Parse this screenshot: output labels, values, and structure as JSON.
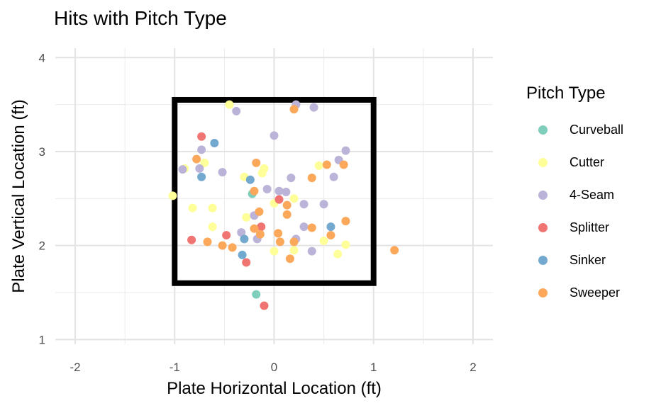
{
  "chart_data": {
    "type": "scatter",
    "title": "Hits with Pitch Type",
    "xlabel": "Plate Horizontal Location (ft)",
    "ylabel": "Plate Vertical Location (ft)",
    "xlim": [
      -2.2,
      2.2
    ],
    "ylim": [
      0.95,
      4.1
    ],
    "xticks": [
      -2,
      -1,
      0,
      1,
      2
    ],
    "yticks": [
      1,
      2,
      3,
      4
    ],
    "xtick_labels": [
      "-2",
      "-1",
      "0",
      "1",
      "2"
    ],
    "ytick_labels": [
      "1",
      "2",
      "3",
      "4"
    ],
    "grid": true,
    "strike_zone": {
      "x": [
        -1,
        1
      ],
      "y": [
        1.6,
        3.55
      ]
    },
    "legend_title": "Pitch Type",
    "legend_position": "right",
    "series": [
      {
        "name": "Curveball",
        "color": "#7fcdbb",
        "points": [
          [
            -0.22,
            2.55
          ],
          [
            -0.18,
            1.48
          ]
        ]
      },
      {
        "name": "Cutter",
        "color": "#ffff99",
        "points": [
          [
            -0.45,
            3.5
          ],
          [
            -0.9,
            2.82
          ],
          [
            -0.7,
            2.88
          ],
          [
            -1.02,
            2.53
          ],
          [
            -0.82,
            2.4
          ],
          [
            -0.62,
            2.4
          ],
          [
            -0.3,
            2.73
          ],
          [
            -0.28,
            2.3
          ],
          [
            -0.12,
            2.77
          ],
          [
            -0.1,
            2.82
          ],
          [
            0.2,
            2.5
          ],
          [
            0.45,
            2.85
          ],
          [
            -0.62,
            2.2
          ],
          [
            -0.3,
            2.07
          ],
          [
            0.0,
            1.94
          ],
          [
            0.2,
            1.95
          ],
          [
            0.5,
            2.05
          ],
          [
            0.64,
            1.91
          ],
          [
            0.72,
            2.01
          ],
          [
            0.0,
            2.45
          ]
        ]
      },
      {
        "name": "4-Seam",
        "color": "#bcb3d8",
        "points": [
          [
            -0.38,
            3.43
          ],
          [
            0.22,
            3.5
          ],
          [
            0.4,
            3.47
          ],
          [
            0.0,
            3.17
          ],
          [
            -0.73,
            3.02
          ],
          [
            -0.92,
            2.81
          ],
          [
            -0.75,
            2.82
          ],
          [
            -0.52,
            2.78
          ],
          [
            0.72,
            3.01
          ],
          [
            0.65,
            2.91
          ],
          [
            0.17,
            2.72
          ],
          [
            0.6,
            2.73
          ],
          [
            -0.07,
            2.6
          ],
          [
            0.05,
            2.58
          ],
          [
            0.12,
            2.57
          ],
          [
            0.3,
            2.44
          ],
          [
            0.5,
            2.44
          ],
          [
            -0.2,
            2.32
          ],
          [
            -0.33,
            2.14
          ],
          [
            -0.17,
            2.07
          ],
          [
            0.22,
            2.07
          ],
          [
            0.3,
            2.2
          ],
          [
            0.38,
            1.94
          ]
        ]
      },
      {
        "name": "Splitter",
        "color": "#f07472",
        "points": [
          [
            -0.73,
            3.16
          ],
          [
            0.05,
            2.49
          ],
          [
            -0.83,
            2.06
          ],
          [
            -0.48,
            2.11
          ],
          [
            -0.13,
            2.2
          ],
          [
            -0.28,
            1.82
          ],
          [
            -0.1,
            1.36
          ]
        ]
      },
      {
        "name": "Sinker",
        "color": "#74a9cf",
        "points": [
          [
            -0.6,
            3.09
          ],
          [
            -0.73,
            2.73
          ],
          [
            -0.24,
            2.7
          ],
          [
            -0.3,
            2.07
          ],
          [
            0.57,
            2.2
          ],
          [
            -0.32,
            1.9
          ]
        ]
      },
      {
        "name": "Sweeper",
        "color": "#fca85a",
        "points": [
          [
            0.2,
            3.45
          ],
          [
            -0.78,
            2.92
          ],
          [
            -0.18,
            2.88
          ],
          [
            0.53,
            2.86
          ],
          [
            0.7,
            2.86
          ],
          [
            0.38,
            2.72
          ],
          [
            -0.2,
            2.58
          ],
          [
            0.13,
            2.43
          ],
          [
            0.13,
            2.33
          ],
          [
            -0.15,
            2.36
          ],
          [
            0.72,
            2.26
          ],
          [
            -0.2,
            2.18
          ],
          [
            -0.14,
            2.12
          ],
          [
            0.38,
            2.19
          ],
          [
            0.04,
            2.13
          ],
          [
            0.57,
            2.11
          ],
          [
            -0.67,
            2.04
          ],
          [
            0.06,
            2.04
          ],
          [
            0.2,
            2.04
          ],
          [
            -0.52,
            2.0
          ],
          [
            -0.42,
            1.98
          ],
          [
            0.16,
            1.86
          ],
          [
            1.21,
            1.95
          ]
        ]
      }
    ]
  }
}
